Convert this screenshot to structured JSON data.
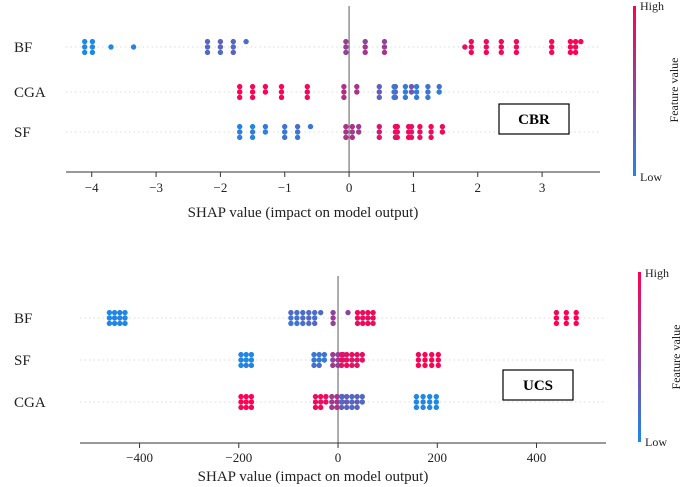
{
  "chart_data": [
    {
      "type": "scatter",
      "subtype": "shap-beeswarm",
      "badge": "CBR",
      "xlabel": "SHAP value (impact on model output)",
      "xlim": [
        -4.4,
        3.9
      ],
      "xticks": [
        -4,
        -3,
        -2,
        -1,
        0,
        1,
        2,
        3
      ],
      "xtick_labels": [
        "−4",
        "−3",
        "−2",
        "−1",
        "0",
        "1",
        "2",
        "3"
      ],
      "colorbar": {
        "high": "High",
        "low": "Low",
        "label": "Feature value"
      },
      "features": [
        "BF",
        "CGA",
        "SF"
      ],
      "clusters": {
        "BF": [
          {
            "x": -4.05,
            "n": 6,
            "c": 0.0,
            "w": 0.06
          },
          {
            "x": -3.7,
            "n": 1,
            "c": 0.0,
            "w": 0.0
          },
          {
            "x": -3.35,
            "n": 1,
            "c": 0.0,
            "w": 0.0
          },
          {
            "x": -1.9,
            "n": 10,
            "c": 0.25,
            "w": 0.3
          },
          {
            "x": 0.25,
            "n": 9,
            "c": 0.55,
            "w": 0.3
          },
          {
            "x": 1.8,
            "n": 1,
            "c": 0.9,
            "w": 0.0
          },
          {
            "x": 2.25,
            "n": 12,
            "c": 0.95,
            "w": 0.35
          },
          {
            "x": 3.15,
            "n": 3,
            "c": 1.0,
            "w": 0.0
          },
          {
            "x": 3.52,
            "n": 7,
            "c": 1.0,
            "w": 0.0
          }
        ],
        "CGA": [
          {
            "x": -1.5,
            "n": 8,
            "c": 1.0,
            "w": 0.2
          },
          {
            "x": -0.85,
            "n": 6,
            "c": 0.95,
            "w": 0.2
          },
          {
            "x": 0.02,
            "n": 5,
            "c": 0.65,
            "w": 0.1
          },
          {
            "x": 0.72,
            "n": 8,
            "c": 0.3,
            "w": 0.25
          },
          {
            "x": 1.05,
            "n": 14,
            "c": 0.12,
            "w": 0.35
          }
        ],
        "SF": [
          {
            "x": -1.5,
            "n": 8,
            "c": 0.05,
            "w": 0.2
          },
          {
            "x": -0.8,
            "n": 7,
            "c": 0.15,
            "w": 0.2
          },
          {
            "x": 0.05,
            "n": 8,
            "c": 0.6,
            "w": 0.1
          },
          {
            "x": 0.72,
            "n": 9,
            "c": 0.85,
            "w": 0.25
          },
          {
            "x": 1.1,
            "n": 14,
            "c": 0.95,
            "w": 0.35
          }
        ]
      }
    },
    {
      "type": "scatter",
      "subtype": "shap-beeswarm",
      "badge": "UCS",
      "xlabel": "SHAP value (impact on model output)",
      "xlim": [
        -520,
        540
      ],
      "xticks": [
        -400,
        -200,
        0,
        200,
        400
      ],
      "xtick_labels": [
        "−400",
        "−200",
        "0",
        "200",
        "400"
      ],
      "colorbar": {
        "high": "High",
        "low": "Low",
        "label": "Feature value"
      },
      "features": [
        "BF",
        "SF",
        "CGA"
      ],
      "clusters": {
        "BF": [
          {
            "x": -445,
            "n": 12,
            "c": 0.0,
            "w": 12
          },
          {
            "x": -65,
            "n": 16,
            "c": 0.2,
            "w": 30
          },
          {
            "x": 5,
            "n": 4,
            "c": 0.5,
            "w": 15
          },
          {
            "x": 55,
            "n": 12,
            "c": 0.9,
            "w": 15
          },
          {
            "x": 460,
            "n": 9,
            "c": 1.0,
            "w": 20
          }
        ],
        "SF": [
          {
            "x": -185,
            "n": 9,
            "c": 0.0,
            "w": 6
          },
          {
            "x": -38,
            "n": 8,
            "c": 0.15,
            "w": 8
          },
          {
            "x": 0,
            "n": 8,
            "c": 0.55,
            "w": 6
          },
          {
            "x": 28,
            "n": 14,
            "c": 0.9,
            "w": 10
          },
          {
            "x": 182,
            "n": 12,
            "c": 1.0,
            "w": 20
          }
        ],
        "CGA": [
          {
            "x": -185,
            "n": 9,
            "c": 1.0,
            "w": 6
          },
          {
            "x": -35,
            "n": 8,
            "c": 0.9,
            "w": 8
          },
          {
            "x": -2,
            "n": 8,
            "c": 0.6,
            "w": 6
          },
          {
            "x": 28,
            "n": 14,
            "c": 0.25,
            "w": 10
          },
          {
            "x": 178,
            "n": 12,
            "c": 0.0,
            "w": 20
          }
        ]
      }
    }
  ],
  "colors": {
    "low": "#1e88e5",
    "high": "#ff0052",
    "axis": "#333333",
    "zero": "#808080"
  }
}
